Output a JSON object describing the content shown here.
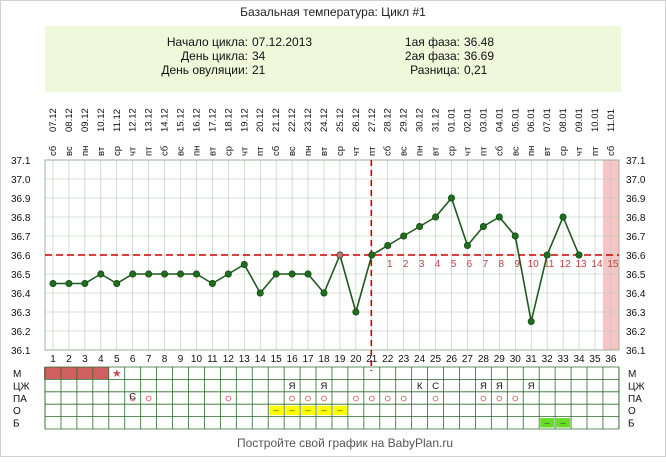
{
  "title": "Базальная температура: Цикл #1",
  "info": {
    "left": [
      {
        "label": "Начало цикла:",
        "value": "07.12.2013"
      },
      {
        "label": "День цикла:",
        "value": "34"
      },
      {
        "label": "День овуляции:",
        "value": "21"
      }
    ],
    "right": [
      {
        "label": "1ая фаза:",
        "value": "36.48"
      },
      {
        "label": "2ая фаза:",
        "value": "36.69"
      },
      {
        "label": "Разница:",
        "value": "0,21"
      }
    ]
  },
  "footer": "Постройте свой график на BabyPlan.ru",
  "colors": {
    "line": "#1e5a1e",
    "marker": "#1e6e1e",
    "marker_highlight": "#c87070",
    "coverline": "#cc0000",
    "info_bg": "#f0f8dc",
    "period": "#d06060",
    "forecast": "#f6c6c6",
    "lh_bar": "#ffff00",
    "test_bar": "#66dd22",
    "grid_line": "#b2c8b2",
    "phase_number": "#bb4444"
  },
  "chart_data": {
    "type": "line",
    "dates": [
      "07.12",
      "08.12",
      "09.12",
      "10.12",
      "11.12",
      "12.12",
      "13.12",
      "14.12",
      "15.12",
      "16.12",
      "17.12",
      "18.12",
      "19.12",
      "20.12",
      "21.12",
      "22.12",
      "23.12",
      "24.12",
      "25.12",
      "26.12",
      "27.12",
      "28.12",
      "29.12",
      "30.12",
      "31.12",
      "01.01",
      "02.01",
      "03.01",
      "04.01",
      "05.01",
      "06.01",
      "07.01",
      "08.01",
      "09.01",
      "10.01",
      "11.01"
    ],
    "weekdays": [
      "сб",
      "вс",
      "пн",
      "вт",
      "ср",
      "чт",
      "пт",
      "сб",
      "вс",
      "пн",
      "вт",
      "ср",
      "чт",
      "пт",
      "сб",
      "вс",
      "пн",
      "вт",
      "ср",
      "чт",
      "пт",
      "сб",
      "вс",
      "пн",
      "вт",
      "ср",
      "чт",
      "пт",
      "сб",
      "вс",
      "пн",
      "вт",
      "ср",
      "чт",
      "пт",
      "сб"
    ],
    "days": [
      1,
      2,
      3,
      4,
      5,
      6,
      7,
      8,
      9,
      10,
      11,
      12,
      13,
      14,
      15,
      16,
      17,
      18,
      19,
      20,
      21,
      22,
      23,
      24,
      25,
      26,
      27,
      28,
      29,
      30,
      31,
      32,
      33,
      34,
      35,
      36
    ],
    "temperatures": [
      36.45,
      36.45,
      36.45,
      36.5,
      36.45,
      36.5,
      36.5,
      36.5,
      36.5,
      36.5,
      36.45,
      36.5,
      36.55,
      36.4,
      36.5,
      36.5,
      36.5,
      36.4,
      36.6,
      36.3,
      36.6,
      36.65,
      36.7,
      36.75,
      36.8,
      36.9,
      36.65,
      36.75,
      36.8,
      36.7,
      36.25,
      36.6,
      36.8,
      36.6,
      null,
      null
    ],
    "highlighted_days": [
      19
    ],
    "y_ticks": [
      36.1,
      36.2,
      36.3,
      36.4,
      36.5,
      36.6,
      36.7,
      36.8,
      36.9,
      37.0,
      37.1
    ],
    "ylim": [
      36.1,
      37.1
    ],
    "coverline": 36.6,
    "ovulation_day": 21,
    "second_phase_numbers": [
      "1",
      "2",
      "3",
      "4",
      "5",
      "6",
      "7",
      "8",
      "9",
      "10",
      "11",
      "12",
      "13",
      "14",
      "15"
    ],
    "forecast_day": 36,
    "moon_day": 10,
    "grid": true,
    "rows": [
      {
        "label": "М",
        "right_label": "М",
        "period_days": [
          1,
          2,
          3,
          4
        ],
        "star_day": 5,
        "star": "★"
      },
      {
        "label": "ЦЖ",
        "right_label": "ЦЖ",
        "marks": [
          {
            "day": 16,
            "t": "Я"
          },
          {
            "day": 18,
            "t": "Я"
          },
          {
            "day": 24,
            "t": "К"
          },
          {
            "day": 25,
            "t": "С"
          },
          {
            "day": 28,
            "t": "Я"
          },
          {
            "day": 29,
            "t": "Я"
          },
          {
            "day": 31,
            "t": "Я"
          }
        ]
      },
      {
        "label": "ПА",
        "right_label": "ПА",
        "marks": [
          {
            "day": 6,
            "t": "С"
          }
        ],
        "circle_days": [
          6,
          7,
          12,
          16,
          17,
          18,
          20,
          21,
          22,
          23,
          25,
          28,
          29,
          30
        ]
      },
      {
        "label": "О",
        "right_label": "О",
        "bar_days": [
          15,
          16,
          17,
          18,
          19
        ],
        "bar_text": "–"
      },
      {
        "label": "Б",
        "right_label": "Б",
        "green_days": [
          32,
          33
        ],
        "bar_text": "–"
      }
    ]
  }
}
